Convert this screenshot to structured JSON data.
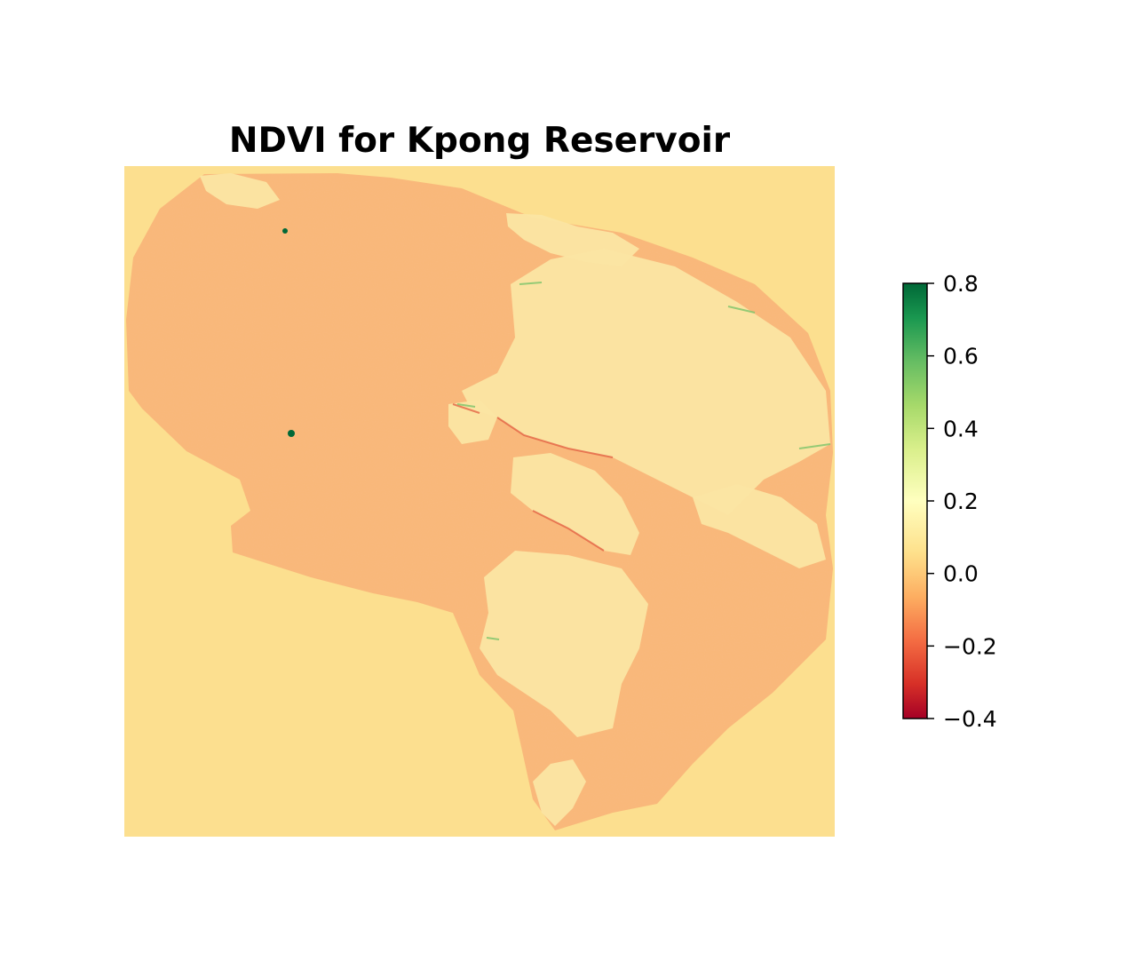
{
  "chart_data": {
    "type": "heatmap",
    "title": "NDVI for Kpong Reservoir",
    "xlabel": "",
    "ylabel": "",
    "axes_visible": false,
    "grid": false,
    "colormap": "RdYlGn",
    "colorbar": {
      "range": [
        -0.4,
        0.8
      ],
      "placement": "right",
      "ticks": [
        {
          "value": 0.8,
          "label": "0.8"
        },
        {
          "value": 0.6,
          "label": "0.6"
        },
        {
          "value": 0.4,
          "label": "0.4"
        },
        {
          "value": 0.2,
          "label": "0.2"
        },
        {
          "value": 0.0,
          "label": "0.0"
        },
        {
          "value": -0.2,
          "label": "−0.2"
        },
        {
          "value": -0.4,
          "label": "−0.4"
        }
      ]
    },
    "colors": {
      "background_value_color": "#fcdf8f",
      "water_color": "#f9b777",
      "land_color": "#fbe5a3",
      "stop_low": "#a50026",
      "stop_mid": "#ffffbf",
      "stop_high": "#006837"
    }
  }
}
